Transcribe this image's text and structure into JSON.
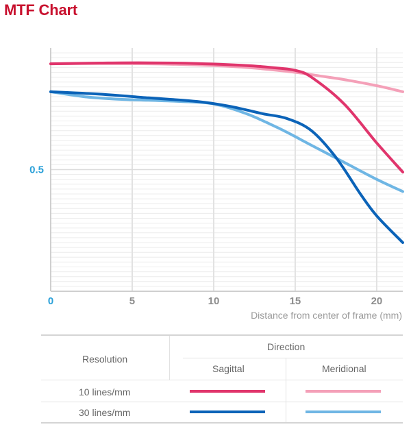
{
  "header": {
    "title": "MTF Chart"
  },
  "chart_data": {
    "type": "line",
    "xlabel": "Distance from center of frame (mm)",
    "ylabel": "",
    "xlim": [
      0,
      21.6
    ],
    "ylim": [
      0,
      1
    ],
    "x_ticks": [
      "0",
      "5",
      "10",
      "15",
      "20"
    ],
    "y_ticks": [
      "0.5"
    ],
    "grid": true,
    "series": [
      {
        "name": "10 lines/mm Sagittal",
        "color": "#e0356c",
        "x": [
          0,
          3,
          6,
          9,
          12,
          14,
          15,
          16,
          18,
          20,
          21.6
        ],
        "y": [
          0.935,
          0.938,
          0.939,
          0.936,
          0.928,
          0.917,
          0.908,
          0.88,
          0.77,
          0.61,
          0.49
        ]
      },
      {
        "name": "10 lines/mm Meridional",
        "color": "#f4a0b8",
        "x": [
          0,
          3,
          6,
          9,
          12,
          15,
          16.5,
          18,
          20,
          21.6
        ],
        "y": [
          0.935,
          0.936,
          0.935,
          0.93,
          0.92,
          0.9,
          0.885,
          0.87,
          0.845,
          0.82
        ]
      },
      {
        "name": "30 lines/mm Sagittal",
        "color": "#0b63b8",
        "x": [
          0,
          3,
          6,
          9,
          11,
          13,
          14.5,
          16,
          17.5,
          19,
          20,
          21.6
        ],
        "y": [
          0.82,
          0.81,
          0.795,
          0.78,
          0.76,
          0.73,
          0.71,
          0.66,
          0.55,
          0.4,
          0.31,
          0.2
        ]
      },
      {
        "name": "30 lines/mm Meridional",
        "color": "#6fb6e4",
        "x": [
          0,
          2,
          4,
          6,
          8,
          10,
          12,
          14,
          16,
          18,
          20,
          21.6
        ],
        "y": [
          0.82,
          0.8,
          0.79,
          0.785,
          0.78,
          0.77,
          0.73,
          0.67,
          0.6,
          0.53,
          0.46,
          0.41
        ]
      }
    ]
  },
  "legend_table": {
    "header_left": "Resolution",
    "header_direction": "Direction",
    "col_sagittal": "Sagittal",
    "col_meridional": "Meridional",
    "rows": [
      {
        "label": "10 lines/mm",
        "sagittal_color": "#e0356c",
        "meridional_color": "#f4a0b8"
      },
      {
        "label": "30 lines/mm",
        "sagittal_color": "#0b63b8",
        "meridional_color": "#6fb6e4"
      }
    ]
  }
}
